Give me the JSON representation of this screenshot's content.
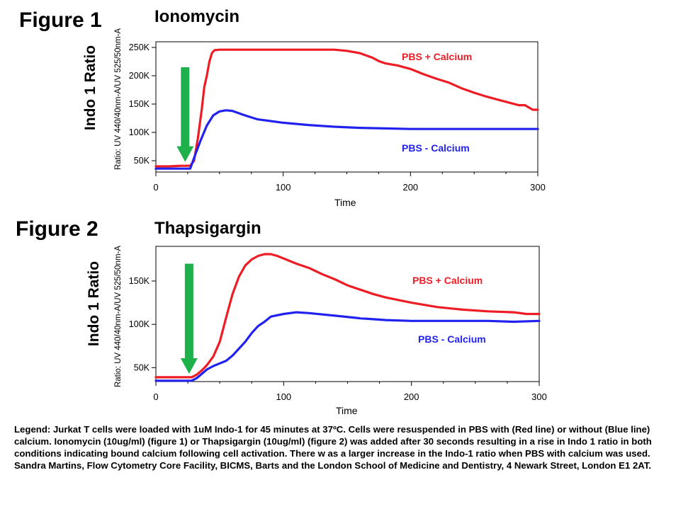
{
  "figures": [
    {
      "label": "Figure 1",
      "big_ylabel": "Indo 1 Ratio"
    },
    {
      "label": "Figure 2",
      "big_ylabel": "Indo 1 Ratio"
    }
  ],
  "chart_data": [
    {
      "type": "line",
      "title": "Ionomycin",
      "xlabel": "Time",
      "ylabel": "Ratio: UV 440/40nm-A/UV 525/50nm-A",
      "xlim": [
        0,
        300
      ],
      "ylim": [
        30000,
        260000
      ],
      "x_ticks": [
        0,
        100,
        200,
        300
      ],
      "y_ticks": [
        50000,
        100000,
        150000,
        200000,
        250000
      ],
      "y_tick_labels": [
        "50K",
        "100K",
        "150K",
        "200K",
        "250K"
      ],
      "grid": false,
      "arrow": {
        "x": 23,
        "y_from": 215000,
        "y_to": 48000,
        "color": "#1db04b"
      },
      "series": [
        {
          "name": "PBS + Calcium",
          "color": "#ee1c24",
          "x": [
            0,
            10,
            20,
            27,
            30,
            33,
            36,
            38,
            40,
            42,
            44,
            46,
            50,
            55,
            60,
            80,
            100,
            120,
            140,
            150,
            160,
            170,
            175,
            180,
            190,
            200,
            210,
            220,
            230,
            240,
            250,
            260,
            270,
            280,
            285,
            290,
            296,
            300
          ],
          "y": [
            40000,
            40000,
            41000,
            41000,
            50000,
            90000,
            140000,
            180000,
            200000,
            225000,
            240000,
            245000,
            246000,
            246000,
            246000,
            246000,
            246000,
            246000,
            246000,
            244000,
            240000,
            232000,
            226000,
            222000,
            218000,
            212000,
            203000,
            195000,
            188000,
            178000,
            170000,
            163000,
            157000,
            151000,
            148000,
            148000,
            140000,
            140000
          ]
        },
        {
          "name": "PBS - Calcium",
          "color": "#2222ee",
          "x": [
            0,
            10,
            20,
            27,
            30,
            35,
            40,
            45,
            50,
            55,
            60,
            70,
            80,
            100,
            120,
            140,
            160,
            180,
            200,
            220,
            240,
            260,
            280,
            300
          ],
          "y": [
            36000,
            36000,
            36000,
            36000,
            55000,
            85000,
            112000,
            130000,
            137000,
            139000,
            138000,
            130000,
            123000,
            117000,
            113000,
            110000,
            108000,
            107000,
            106000,
            106000,
            106000,
            106000,
            106000,
            106000
          ]
        }
      ]
    },
    {
      "type": "line",
      "title": "Thapsigargin",
      "xlabel": "Time",
      "ylabel": "Ratio: UV 440/40nm-A/UV 525/50nm-A",
      "xlim": [
        0,
        300
      ],
      "ylim": [
        34000,
        190000
      ],
      "x_ticks": [
        0,
        100,
        200,
        300
      ],
      "y_ticks": [
        50000,
        100000,
        150000
      ],
      "y_tick_labels": [
        "50K",
        "100K",
        "150K"
      ],
      "grid": false,
      "arrow": {
        "x": 26,
        "y_from": 170000,
        "y_to": 43000,
        "color": "#1db04b"
      },
      "series": [
        {
          "name": "PBS + Calcium",
          "color": "#ee1c24",
          "x": [
            0,
            10,
            20,
            28,
            32,
            36,
            40,
            45,
            50,
            55,
            60,
            65,
            70,
            75,
            80,
            85,
            90,
            95,
            100,
            110,
            120,
            130,
            140,
            150,
            160,
            170,
            180,
            200,
            220,
            240,
            260,
            280,
            290,
            300
          ],
          "y": [
            39000,
            39000,
            39000,
            39000,
            42000,
            47000,
            53000,
            63000,
            80000,
            108000,
            135000,
            155000,
            168000,
            175000,
            179000,
            181000,
            181000,
            179000,
            176000,
            170000,
            165000,
            158000,
            152000,
            145000,
            140000,
            135000,
            131000,
            125000,
            120000,
            117000,
            115000,
            114000,
            112000,
            112000
          ]
        },
        {
          "name": "PBS - Calcium",
          "color": "#2222ee",
          "x": [
            0,
            10,
            20,
            28,
            32,
            36,
            40,
            45,
            50,
            55,
            60,
            65,
            70,
            75,
            80,
            85,
            90,
            100,
            110,
            120,
            140,
            160,
            180,
            200,
            220,
            240,
            260,
            280,
            300
          ],
          "y": [
            35000,
            35000,
            35000,
            35000,
            38000,
            43000,
            48000,
            52000,
            55000,
            58000,
            64000,
            72000,
            80000,
            90000,
            98000,
            103000,
            109000,
            112000,
            114000,
            113000,
            110000,
            107000,
            105000,
            104000,
            104000,
            104000,
            104000,
            103000,
            104000
          ]
        }
      ]
    }
  ],
  "legend_paragraph": "Legend: Jurkat T cells were loaded with 1uM Indo-1 for 45 minutes at 37ºC. Cells were resuspended in PBS with (Red line) or without (Blue line) calcium. Ionomycin (10ug/ml) (figure 1) or Thapsigargin (10ug/ml) (figure 2) was added after 30 seconds resulting in a rise in Indo 1 ratio in both conditions indicating  bound calcium following cell activation. There w as a larger increase in the Indo-1 ratio when PBS with calcium was used. Sandra Martins, Flow Cytometry Core Facility, BICMS, Barts and the London School of Medicine and Dentistry, 4 Newark Street, London E1 2AT."
}
